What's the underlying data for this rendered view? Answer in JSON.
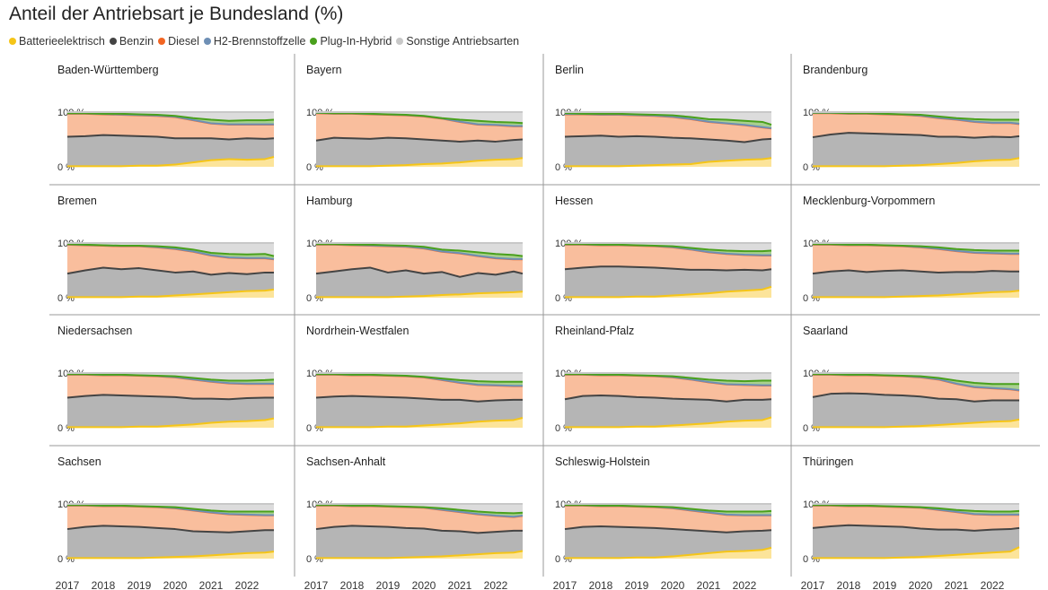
{
  "title": "Anteil der Antriebsart je Bundesland (%)",
  "legend": [
    {
      "label": "Batterieelektrisch",
      "color": "#F5C518"
    },
    {
      "label": "Benzin",
      "color": "#444444"
    },
    {
      "label": "Diesel",
      "color": "#F26522"
    },
    {
      "label": "H2-Brennstoffzelle",
      "color": "#6E8FB5"
    },
    {
      "label": "Plug-In-Hybrid",
      "color": "#49A01C"
    },
    {
      "label": "Sonstige Antriebsarten",
      "color": "#C8C8C8"
    }
  ],
  "fill_colors": {
    "Batterieelektrisch": "#FCE49A",
    "Benzin": "#B5B5B5",
    "Diesel": "#F9BE9D",
    "H2-Brennstoffzelle": "#B6C6DA",
    "Plug-In-Hybrid": "#A9D08E",
    "Sonstige Antriebsarten": "#DCDCDC"
  },
  "chart_data": {
    "type": "area",
    "stacked": true,
    "x_ticks": [
      "2017",
      "2018",
      "2019",
      "2020",
      "2021",
      "2022"
    ],
    "y_ticks": [
      "0 %",
      "100 %"
    ],
    "ylim": [
      0,
      100
    ],
    "x_unit": "year",
    "x": [
      2017.0,
      2017.5,
      2018.0,
      2018.5,
      2019.0,
      2019.5,
      2020.0,
      2020.5,
      2021.0,
      2021.5,
      2022.0,
      2022.5,
      2022.75
    ],
    "series_order": [
      "Batterieelektrisch",
      "Benzin",
      "Diesel",
      "H2-Brennstoffzelle",
      "Plug-In-Hybrid",
      "Sonstige Antriebsarten"
    ],
    "panels": [
      {
        "name": "Baden-Württemberg",
        "cumulative": {
          "Batterieelektrisch": [
            1,
            1,
            1,
            1,
            2,
            2,
            4,
            8,
            12,
            14,
            13,
            14,
            18
          ],
          "Benzin": [
            55,
            56,
            58,
            57,
            56,
            55,
            52,
            52,
            52,
            50,
            52,
            51,
            52
          ],
          "Diesel": [
            97,
            97,
            96,
            95,
            94,
            93,
            91,
            85,
            79,
            77,
            77,
            77,
            77
          ],
          "Plug-In-Hybrid": [
            98,
            98,
            97,
            97,
            96,
            95,
            93,
            89,
            86,
            84,
            85,
            85,
            86
          ]
        }
      },
      {
        "name": "Bayern",
        "cumulative": {
          "Batterieelektrisch": [
            1,
            1,
            1,
            1,
            2,
            3,
            5,
            6,
            8,
            11,
            13,
            14,
            16
          ],
          "Benzin": [
            48,
            53,
            52,
            51,
            53,
            52,
            50,
            48,
            46,
            48,
            46,
            49,
            50
          ],
          "Diesel": [
            98,
            97,
            97,
            96,
            95,
            94,
            92,
            88,
            82,
            77,
            76,
            74,
            74
          ],
          "Plug-In-Hybrid": [
            99,
            98,
            98,
            97,
            96,
            95,
            93,
            89,
            86,
            84,
            82,
            81,
            80
          ]
        }
      },
      {
        "name": "Berlin",
        "cumulative": {
          "Batterieelektrisch": [
            1,
            1,
            1,
            1,
            2,
            3,
            4,
            5,
            9,
            11,
            13,
            14,
            16
          ],
          "Benzin": [
            55,
            56,
            57,
            55,
            56,
            55,
            53,
            52,
            50,
            48,
            45,
            50,
            51
          ],
          "Diesel": [
            96,
            96,
            95,
            95,
            94,
            93,
            91,
            87,
            82,
            79,
            76,
            72,
            70
          ],
          "Plug-In-Hybrid": [
            98,
            97,
            97,
            97,
            96,
            95,
            94,
            91,
            87,
            86,
            84,
            82,
            77
          ]
        }
      },
      {
        "name": "Brandenburg",
        "cumulative": {
          "Batterieelektrisch": [
            1,
            1,
            1,
            1,
            1,
            2,
            3,
            5,
            7,
            10,
            12,
            13,
            16
          ],
          "Benzin": [
            54,
            59,
            62,
            61,
            60,
            59,
            58,
            55,
            55,
            53,
            55,
            54,
            56
          ],
          "Diesel": [
            98,
            98,
            97,
            97,
            96,
            95,
            93,
            89,
            86,
            82,
            80,
            80,
            78
          ],
          "Plug-In-Hybrid": [
            99,
            99,
            98,
            98,
            97,
            96,
            95,
            92,
            89,
            87,
            86,
            86,
            86
          ]
        }
      },
      {
        "name": "Bremen",
        "cumulative": {
          "Batterieelektrisch": [
            1,
            1,
            1,
            1,
            2,
            2,
            4,
            6,
            8,
            10,
            12,
            13,
            15
          ],
          "Benzin": [
            44,
            50,
            55,
            52,
            54,
            50,
            46,
            48,
            42,
            45,
            43,
            46,
            46
          ],
          "Diesel": [
            97,
            96,
            95,
            94,
            94,
            92,
            89,
            84,
            77,
            73,
            72,
            72,
            70
          ],
          "Plug-In-Hybrid": [
            98,
            97,
            96,
            95,
            95,
            94,
            92,
            88,
            82,
            80,
            79,
            80,
            76
          ]
        }
      },
      {
        "name": "Hamburg",
        "cumulative": {
          "Batterieelektrisch": [
            1,
            1,
            1,
            1,
            1,
            2,
            3,
            5,
            6,
            8,
            9,
            10,
            11
          ],
          "Benzin": [
            44,
            48,
            52,
            55,
            46,
            50,
            44,
            47,
            38,
            45,
            42,
            48,
            44
          ],
          "Diesel": [
            97,
            97,
            96,
            95,
            94,
            93,
            90,
            84,
            81,
            76,
            72,
            70,
            70
          ],
          "Plug-In-Hybrid": [
            98,
            98,
            97,
            97,
            96,
            95,
            93,
            88,
            86,
            83,
            80,
            78,
            76
          ]
        }
      },
      {
        "name": "Hessen",
        "cumulative": {
          "Batterieelektrisch": [
            1,
            1,
            1,
            1,
            2,
            2,
            4,
            6,
            8,
            11,
            13,
            15,
            20
          ],
          "Benzin": [
            52,
            55,
            57,
            57,
            56,
            55,
            53,
            51,
            51,
            50,
            51,
            50,
            52
          ],
          "Diesel": [
            97,
            97,
            96,
            96,
            95,
            94,
            92,
            88,
            83,
            80,
            78,
            77,
            77
          ],
          "Plug-In-Hybrid": [
            98,
            98,
            97,
            97,
            96,
            95,
            94,
            91,
            88,
            86,
            85,
            85,
            86
          ]
        }
      },
      {
        "name": "Mecklenburg-Vorpommern",
        "cumulative": {
          "Batterieelektrisch": [
            1,
            1,
            1,
            1,
            1,
            2,
            3,
            4,
            6,
            8,
            10,
            11,
            13
          ],
          "Benzin": [
            44,
            48,
            50,
            47,
            49,
            50,
            48,
            46,
            47,
            47,
            49,
            48,
            48
          ],
          "Diesel": [
            97,
            97,
            96,
            96,
            95,
            94,
            92,
            89,
            85,
            82,
            81,
            80,
            80
          ],
          "Plug-In-Hybrid": [
            98,
            98,
            97,
            97,
            96,
            95,
            94,
            92,
            89,
            87,
            86,
            86,
            86
          ]
        }
      },
      {
        "name": "Niedersachsen",
        "cumulative": {
          "Batterieelektrisch": [
            1,
            1,
            1,
            1,
            2,
            2,
            4,
            6,
            9,
            11,
            12,
            14,
            17
          ],
          "Benzin": [
            55,
            58,
            60,
            59,
            58,
            57,
            56,
            53,
            53,
            52,
            54,
            55,
            55
          ],
          "Diesel": [
            97,
            97,
            96,
            96,
            95,
            94,
            92,
            88,
            84,
            81,
            80,
            80,
            80
          ],
          "Plug-In-Hybrid": [
            98,
            98,
            97,
            97,
            96,
            95,
            94,
            91,
            88,
            86,
            86,
            87,
            88
          ]
        }
      },
      {
        "name": "Nordrhein-Westfalen",
        "cumulative": {
          "Batterieelektrisch": [
            1,
            1,
            1,
            1,
            2,
            2,
            4,
            6,
            8,
            11,
            13,
            14,
            18
          ],
          "Benzin": [
            55,
            57,
            58,
            57,
            56,
            55,
            53,
            51,
            51,
            48,
            50,
            51,
            51
          ],
          "Diesel": [
            97,
            97,
            96,
            96,
            95,
            94,
            92,
            87,
            82,
            78,
            77,
            76,
            76
          ],
          "Plug-In-Hybrid": [
            98,
            98,
            97,
            97,
            96,
            95,
            93,
            90,
            87,
            85,
            84,
            84,
            84
          ]
        }
      },
      {
        "name": "Rheinland-Pfalz",
        "cumulative": {
          "Batterieelektrisch": [
            1,
            1,
            1,
            1,
            2,
            2,
            4,
            6,
            8,
            11,
            13,
            14,
            19
          ],
          "Benzin": [
            52,
            58,
            59,
            58,
            56,
            55,
            53,
            52,
            51,
            48,
            51,
            51,
            52
          ],
          "Diesel": [
            97,
            97,
            96,
            96,
            95,
            94,
            92,
            88,
            83,
            79,
            78,
            77,
            77
          ],
          "Plug-In-Hybrid": [
            98,
            98,
            97,
            97,
            96,
            95,
            94,
            91,
            88,
            86,
            85,
            86,
            86
          ]
        }
      },
      {
        "name": "Saarland",
        "cumulative": {
          "Batterieelektrisch": [
            1,
            1,
            1,
            1,
            1,
            2,
            3,
            5,
            7,
            9,
            11,
            12,
            15
          ],
          "Benzin": [
            56,
            62,
            63,
            62,
            60,
            59,
            57,
            53,
            52,
            48,
            50,
            50,
            50
          ],
          "Diesel": [
            97,
            97,
            96,
            96,
            95,
            94,
            92,
            88,
            80,
            74,
            72,
            70,
            68
          ],
          "Plug-In-Hybrid": [
            98,
            98,
            97,
            97,
            96,
            95,
            94,
            91,
            86,
            82,
            80,
            80,
            80
          ]
        }
      },
      {
        "name": "Sachsen",
        "cumulative": {
          "Batterieelektrisch": [
            1,
            1,
            1,
            1,
            1,
            2,
            3,
            4,
            6,
            8,
            10,
            11,
            13
          ],
          "Benzin": [
            54,
            58,
            60,
            59,
            58,
            56,
            54,
            50,
            49,
            48,
            50,
            52,
            52
          ],
          "Diesel": [
            97,
            97,
            96,
            96,
            95,
            94,
            92,
            88,
            84,
            81,
            80,
            79,
            79
          ],
          "Plug-In-Hybrid": [
            98,
            98,
            97,
            97,
            96,
            95,
            94,
            91,
            88,
            86,
            86,
            86,
            86
          ]
        }
      },
      {
        "name": "Sachsen-Anhalt",
        "cumulative": {
          "Batterieelektrisch": [
            1,
            1,
            1,
            1,
            1,
            2,
            3,
            4,
            6,
            8,
            10,
            11,
            14
          ],
          "Benzin": [
            54,
            58,
            60,
            59,
            58,
            56,
            55,
            51,
            50,
            47,
            49,
            51,
            51
          ],
          "Diesel": [
            97,
            97,
            96,
            96,
            95,
            94,
            93,
            89,
            85,
            81,
            78,
            76,
            78
          ],
          "Plug-In-Hybrid": [
            98,
            98,
            97,
            97,
            96,
            95,
            94,
            92,
            89,
            86,
            84,
            83,
            84
          ]
        }
      },
      {
        "name": "Schleswig-Holstein",
        "cumulative": {
          "Batterieelektrisch": [
            1,
            1,
            1,
            1,
            2,
            2,
            4,
            7,
            10,
            13,
            14,
            16,
            20
          ],
          "Benzin": [
            54,
            58,
            59,
            58,
            57,
            56,
            54,
            52,
            50,
            48,
            50,
            51,
            52
          ],
          "Diesel": [
            97,
            97,
            96,
            96,
            95,
            94,
            92,
            88,
            84,
            80,
            79,
            79,
            79
          ],
          "Plug-In-Hybrid": [
            98,
            98,
            97,
            97,
            96,
            95,
            94,
            91,
            88,
            86,
            86,
            86,
            87
          ]
        }
      },
      {
        "name": "Thüringen",
        "cumulative": {
          "Batterieelektrisch": [
            1,
            1,
            1,
            1,
            1,
            2,
            3,
            5,
            7,
            9,
            11,
            13,
            21
          ],
          "Benzin": [
            56,
            59,
            61,
            60,
            59,
            58,
            55,
            53,
            53,
            51,
            53,
            54,
            56
          ],
          "Diesel": [
            97,
            97,
            96,
            96,
            95,
            94,
            93,
            89,
            85,
            81,
            80,
            80,
            80
          ],
          "Plug-In-Hybrid": [
            98,
            98,
            97,
            97,
            96,
            95,
            94,
            92,
            89,
            87,
            86,
            86,
            87
          ]
        }
      }
    ]
  }
}
